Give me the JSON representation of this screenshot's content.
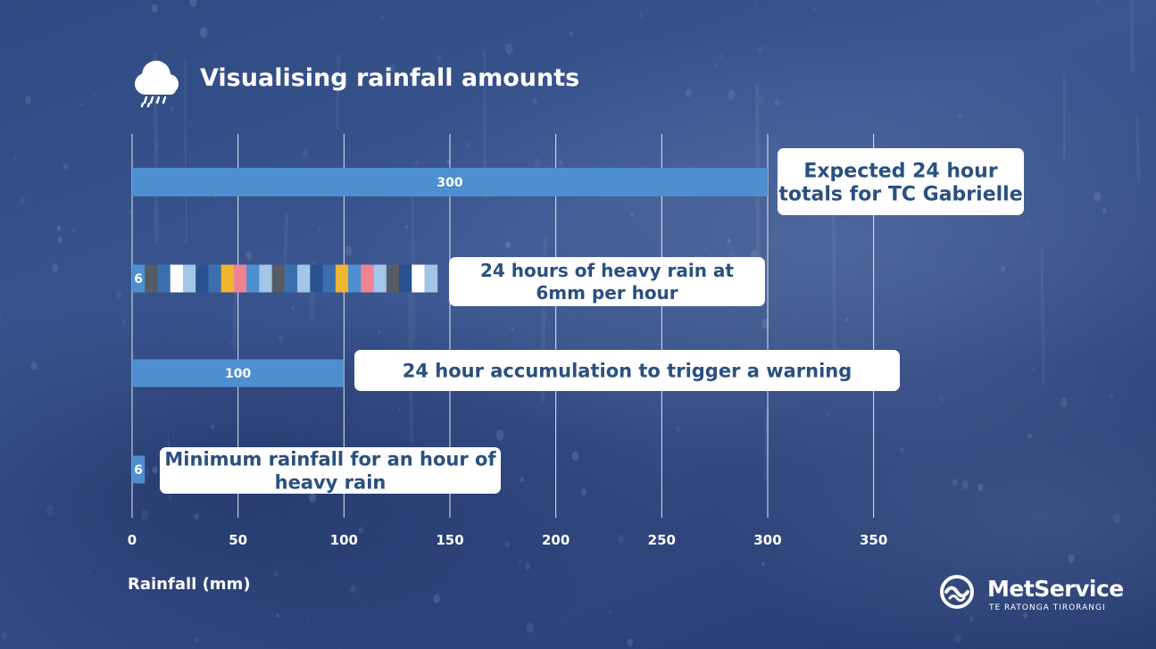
{
  "title": "Visualising rainfall amounts",
  "brand": {
    "name": "MetService",
    "tagline": "TE RATONGA TIRORANGI"
  },
  "colors": {
    "bar": "#4e8fd0",
    "callout_text": "#2a5080",
    "seg_palette": [
      "#3c6fae",
      "#565c66",
      "#ffffff",
      "#a3c5e8",
      "#28528e",
      "#f1b531",
      "#ed8393",
      "#4e8fd0",
      "#6a6e78"
    ]
  },
  "chart_data": {
    "type": "bar",
    "orientation": "horizontal",
    "xlabel": "Rainfall (mm)",
    "xlim": [
      0,
      350
    ],
    "xticks": [
      0,
      50,
      100,
      150,
      200,
      250,
      300,
      350
    ],
    "grid": true,
    "bars": [
      {
        "value": 300,
        "label": "300",
        "annotation": [
          "Expected 24 hour",
          "totals for TC Gabrielle"
        ]
      },
      {
        "value": 144,
        "segments": 24,
        "segment_value": 6,
        "label": "6",
        "annotation": [
          "24 hours of heavy rain at",
          "6mm per hour"
        ]
      },
      {
        "value": 100,
        "label": "100",
        "annotation": [
          "24 hour accumulation to trigger a warning"
        ]
      },
      {
        "value": 6,
        "label": "6",
        "annotation": [
          "Minimum rainfall for an hour of",
          "heavy rain"
        ]
      }
    ]
  }
}
